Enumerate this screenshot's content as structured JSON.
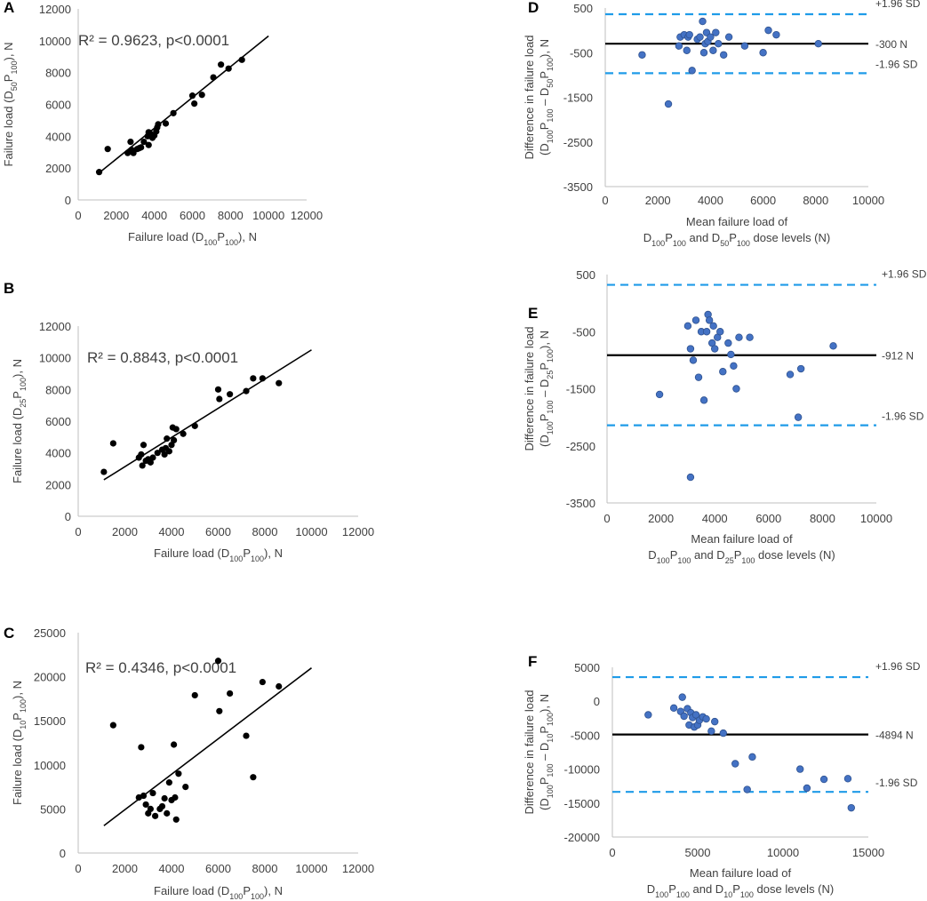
{
  "panels": [
    {
      "id": "A",
      "kind": "scatter",
      "annotation": "R² = 0.9623, p<0.0001",
      "xlabel": {
        "pre": "Failure load (D",
        "s1": "100",
        "mid": "P",
        "s2": "100",
        "post": "), N"
      },
      "ylabel": {
        "pre": "Failure load (D",
        "s1": "50",
        "mid": "P",
        "s2": "100",
        "post": "), N"
      },
      "xlim": [
        0,
        12000
      ],
      "ylim": [
        0,
        12000
      ],
      "xticks": [
        0,
        2000,
        4000,
        6000,
        8000,
        10000,
        12000
      ],
      "yticks": [
        0,
        2000,
        4000,
        6000,
        8000,
        10000,
        12000
      ],
      "trend": [
        [
          1100,
          1700
        ],
        [
          10000,
          10300
        ]
      ],
      "points": [
        [
          1100,
          1750
        ],
        [
          1550,
          3200
        ],
        [
          2600,
          2950
        ],
        [
          2750,
          3650
        ],
        [
          2800,
          3150
        ],
        [
          2900,
          2950
        ],
        [
          3100,
          3200
        ],
        [
          3200,
          3250
        ],
        [
          3300,
          3300
        ],
        [
          3450,
          3650
        ],
        [
          3650,
          4000
        ],
        [
          3700,
          3450
        ],
        [
          3700,
          4250
        ],
        [
          3800,
          4150
        ],
        [
          3900,
          3900
        ],
        [
          4000,
          4050
        ],
        [
          4100,
          4300
        ],
        [
          4150,
          4550
        ],
        [
          4200,
          4750
        ],
        [
          4600,
          4800
        ],
        [
          5000,
          5450
        ],
        [
          6000,
          6550
        ],
        [
          6100,
          6050
        ],
        [
          6500,
          6600
        ],
        [
          7100,
          7700
        ],
        [
          7500,
          8500
        ],
        [
          7900,
          8250
        ],
        [
          8600,
          8800
        ]
      ]
    },
    {
      "id": "B",
      "kind": "scatter",
      "annotation": "R² = 0.8843, p<0.0001",
      "xlabel": {
        "pre": "Failure load (D",
        "s1": "100",
        "mid": "P",
        "s2": "100",
        "post": "), N"
      },
      "ylabel": {
        "pre": "Failure load (D",
        "s1": "25",
        "mid": "P",
        "s2": "100",
        "post": "), N"
      },
      "xlim": [
        0,
        12000
      ],
      "ylim": [
        0,
        12000
      ],
      "xticks": [
        0,
        2000,
        4000,
        6000,
        8000,
        10000,
        12000
      ],
      "yticks": [
        0,
        2000,
        4000,
        6000,
        8000,
        10000,
        12000
      ],
      "trend": [
        [
          1100,
          2300
        ],
        [
          10000,
          10500
        ]
      ],
      "points": [
        [
          1100,
          2800
        ],
        [
          1500,
          4600
        ],
        [
          2600,
          3700
        ],
        [
          2700,
          3900
        ],
        [
          2750,
          3200
        ],
        [
          2800,
          4500
        ],
        [
          2900,
          3500
        ],
        [
          3000,
          3600
        ],
        [
          3100,
          3400
        ],
        [
          3200,
          3700
        ],
        [
          3400,
          4000
        ],
        [
          3600,
          4200
        ],
        [
          3700,
          3900
        ],
        [
          3750,
          4300
        ],
        [
          3800,
          4900
        ],
        [
          3900,
          4100
        ],
        [
          4000,
          4500
        ],
        [
          4050,
          5600
        ],
        [
          4100,
          4800
        ],
        [
          4200,
          5500
        ],
        [
          4500,
          5200
        ],
        [
          5000,
          5700
        ],
        [
          6000,
          8000
        ],
        [
          6050,
          7400
        ],
        [
          6500,
          7700
        ],
        [
          7200,
          7900
        ],
        [
          7500,
          8700
        ],
        [
          7900,
          8700
        ],
        [
          8600,
          8400
        ]
      ]
    },
    {
      "id": "C",
      "kind": "scatter",
      "annotation": "R² = 0.4346, p<0.0001",
      "xlabel": {
        "pre": "Failure load (D",
        "s1": "100",
        "mid": "P",
        "s2": "100",
        "post": "), N"
      },
      "ylabel": {
        "pre": "Failure load (D",
        "s1": "10",
        "mid": "P",
        "s2": "100",
        "post": "), N"
      },
      "xlim": [
        0,
        12000
      ],
      "ylim": [
        0,
        25000
      ],
      "xticks": [
        0,
        2000,
        4000,
        6000,
        8000,
        10000,
        12000
      ],
      "yticks": [
        0,
        5000,
        10000,
        15000,
        20000,
        25000
      ],
      "trend": [
        [
          1100,
          3100
        ],
        [
          10000,
          21000
        ]
      ],
      "points": [
        [
          1500,
          14500
        ],
        [
          2600,
          6300
        ],
        [
          2700,
          12000
        ],
        [
          2800,
          6500
        ],
        [
          2900,
          5500
        ],
        [
          3000,
          4500
        ],
        [
          3100,
          5000
        ],
        [
          3200,
          6800
        ],
        [
          3300,
          4200
        ],
        [
          3500,
          5000
        ],
        [
          3600,
          5300
        ],
        [
          3700,
          6200
        ],
        [
          3800,
          4500
        ],
        [
          3900,
          8000
        ],
        [
          4000,
          6000
        ],
        [
          4100,
          12300
        ],
        [
          4150,
          6300
        ],
        [
          4200,
          3800
        ],
        [
          4300,
          9000
        ],
        [
          4600,
          7500
        ],
        [
          5000,
          17900
        ],
        [
          6000,
          21800
        ],
        [
          6050,
          16100
        ],
        [
          6500,
          18100
        ],
        [
          7200,
          13300
        ],
        [
          7500,
          8600
        ],
        [
          7900,
          19400
        ],
        [
          8600,
          18900
        ]
      ]
    },
    {
      "id": "D",
      "kind": "bland-altman",
      "xlabel1": "Mean failure load of",
      "xlabel2": {
        "a": "D",
        "a1": "100",
        "b": "P",
        "b1": "100",
        "c": " and D",
        "c1": "50",
        "d": "P",
        "d1": "100",
        "e": " dose levels (N)"
      },
      "ylabel1": "Difference in failure load",
      "ylabel2": {
        "a": "(D",
        "a1": "100",
        "b": "P",
        "b1": "100",
        "c": " – D",
        "c1": "50",
        "d": "P",
        "d1": "100",
        "e": "), N"
      },
      "xlim": [
        0,
        10000
      ],
      "ylim": [
        -3500,
        500
      ],
      "xticks": [
        0,
        2000,
        4000,
        6000,
        8000,
        10000
      ],
      "yticks": [
        500,
        -500,
        -1500,
        -2500,
        -3500
      ],
      "mean_value": -300,
      "upper_value": 360,
      "lower_value": -960,
      "mean_label": "-300 N",
      "upper_label": "+1.96 SD",
      "lower_label": "-1.96 SD",
      "points": [
        [
          1400,
          -550
        ],
        [
          2400,
          -1650
        ],
        [
          2800,
          -350
        ],
        [
          2850,
          -150
        ],
        [
          3000,
          -100
        ],
        [
          3100,
          -450
        ],
        [
          3150,
          -150
        ],
        [
          3200,
          -100
        ],
        [
          3300,
          -900
        ],
        [
          3500,
          -200
        ],
        [
          3600,
          -150
        ],
        [
          3700,
          200
        ],
        [
          3750,
          -500
        ],
        [
          3800,
          -300
        ],
        [
          3850,
          -50
        ],
        [
          3900,
          -250
        ],
        [
          4000,
          -150
        ],
        [
          4100,
          -450
        ],
        [
          4200,
          -50
        ],
        [
          4300,
          -300
        ],
        [
          4500,
          -550
        ],
        [
          4700,
          -150
        ],
        [
          5300,
          -350
        ],
        [
          6000,
          -500
        ],
        [
          6200,
          0
        ],
        [
          6500,
          -100
        ],
        [
          8100,
          -300
        ]
      ]
    },
    {
      "id": "E",
      "kind": "bland-altman",
      "xlabel1": "Mean failure load of",
      "xlabel2": {
        "a": "D",
        "a1": "100",
        "b": "P",
        "b1": "100",
        "c": " and D",
        "c1": "25",
        "d": "P",
        "d1": "100",
        "e": " dose levels (N)"
      },
      "ylabel1": "Difference in failure load",
      "ylabel2": {
        "a": "(D",
        "a1": "100",
        "b": "P",
        "b1": "100",
        "c": " – D",
        "c1": "25",
        "d": "P",
        "d1": "100",
        "e": "), N"
      },
      "xlim": [
        0,
        10000
      ],
      "ylim": [
        -3500,
        500
      ],
      "xticks": [
        0,
        2000,
        4000,
        6000,
        8000,
        10000
      ],
      "yticks": [
        500,
        -500,
        -1500,
        -2500,
        -3500
      ],
      "mean_value": -912,
      "upper_value": 320,
      "lower_value": -2140,
      "mean_label": "-912 N",
      "upper_label": "+1.96 SD",
      "lower_label": "-1.96 SD",
      "points": [
        [
          1950,
          -1600
        ],
        [
          3000,
          -400
        ],
        [
          3100,
          -3050
        ],
        [
          3100,
          -800
        ],
        [
          3200,
          -1000
        ],
        [
          3300,
          -300
        ],
        [
          3400,
          -1300
        ],
        [
          3500,
          -500
        ],
        [
          3600,
          -1700
        ],
        [
          3700,
          -500
        ],
        [
          3750,
          -200
        ],
        [
          3800,
          -300
        ],
        [
          3900,
          -700
        ],
        [
          3950,
          -400
        ],
        [
          4000,
          -800
        ],
        [
          4100,
          -600
        ],
        [
          4200,
          -500
        ],
        [
          4300,
          -1200
        ],
        [
          4500,
          -700
        ],
        [
          4600,
          -900
        ],
        [
          4700,
          -1100
        ],
        [
          4800,
          -1500
        ],
        [
          4900,
          -600
        ],
        [
          5300,
          -600
        ],
        [
          6800,
          -1250
        ],
        [
          7100,
          -2000
        ],
        [
          7200,
          -1150
        ],
        [
          8400,
          -750
        ]
      ]
    },
    {
      "id": "F",
      "kind": "bland-altman",
      "xlabel1": "Mean failure load of",
      "xlabel2": {
        "a": "D",
        "a1": "100",
        "b": "P",
        "b1": "100",
        "c": " and D",
        "c1": "10",
        "d": "P",
        "d1": "100",
        "e": " dose levels (N)"
      },
      "ylabel1": "Difference in failure load",
      "ylabel2": {
        "a": "(D",
        "a1": "100",
        "b": "P",
        "b1": "100",
        "c": " – D",
        "c1": "10",
        "d": "P",
        "d1": "100",
        "e": "), N"
      },
      "xlim": [
        0,
        15000
      ],
      "ylim": [
        -20000,
        5000
      ],
      "xticks": [
        0,
        5000,
        10000,
        15000
      ],
      "yticks": [
        5000,
        0,
        -5000,
        -10000,
        -15000,
        -20000
      ],
      "mean_value": -4894,
      "upper_value": 3550,
      "lower_value": -13350,
      "mean_label": "-4894 N",
      "upper_label": "+1.96 SD",
      "lower_label": "-1.96 SD",
      "points": [
        [
          2100,
          -2000
        ],
        [
          3600,
          -1000
        ],
        [
          4000,
          -1500
        ],
        [
          4100,
          600
        ],
        [
          4200,
          -2200
        ],
        [
          4400,
          -1100
        ],
        [
          4500,
          -3500
        ],
        [
          4600,
          -1700
        ],
        [
          4700,
          -2400
        ],
        [
          4800,
          -3800
        ],
        [
          4900,
          -2000
        ],
        [
          5000,
          -3500
        ],
        [
          5100,
          -2800
        ],
        [
          5300,
          -2300
        ],
        [
          5500,
          -2600
        ],
        [
          5800,
          -4400
        ],
        [
          6000,
          -3000
        ],
        [
          6500,
          -4700
        ],
        [
          7200,
          -9200
        ],
        [
          7900,
          -13000
        ],
        [
          8200,
          -8200
        ],
        [
          11000,
          -10000
        ],
        [
          11400,
          -12800
        ],
        [
          12400,
          -11500
        ],
        [
          13800,
          -11400
        ],
        [
          14000,
          -15700
        ]
      ]
    }
  ],
  "chart_data": [
    {
      "type": "scatter",
      "panel": "A",
      "title": "",
      "xlabel": "Failure load (D100P100), N",
      "ylabel": "Failure load (D50P100), N",
      "xlim": [
        0,
        12000
      ],
      "ylim": [
        0,
        12000
      ],
      "annotation": "R² = 0.9623, p<0.0001",
      "trendline": [
        [
          1100,
          1700
        ],
        [
          10000,
          10300
        ]
      ]
    },
    {
      "type": "scatter",
      "panel": "B",
      "title": "",
      "xlabel": "Failure load (D100P100), N",
      "ylabel": "Failure load (D25P100), N",
      "xlim": [
        0,
        12000
      ],
      "ylim": [
        0,
        12000
      ],
      "annotation": "R² = 0.8843, p<0.0001",
      "trendline": [
        [
          1100,
          2300
        ],
        [
          10000,
          10500
        ]
      ]
    },
    {
      "type": "scatter",
      "panel": "C",
      "title": "",
      "xlabel": "Failure load (D100P100), N",
      "ylabel": "Failure load (D10P100), N",
      "xlim": [
        0,
        12000
      ],
      "ylim": [
        0,
        25000
      ],
      "annotation": "R² = 0.4346, p<0.0001",
      "trendline": [
        [
          1100,
          3100
        ],
        [
          10000,
          21000
        ]
      ]
    },
    {
      "type": "scatter",
      "panel": "D",
      "title": "",
      "xlabel": "Mean failure load of D100P100 and D50P100 dose levels (N)",
      "ylabel": "Difference in failure load (D100P100 – D50P100), N",
      "xlim": [
        0,
        10000
      ],
      "ylim": [
        -3500,
        500
      ],
      "mean_bias": -300,
      "upper_loa": 360,
      "lower_loa": -960
    },
    {
      "type": "scatter",
      "panel": "E",
      "title": "",
      "xlabel": "Mean failure load of D100P100 and D25P100 dose levels (N)",
      "ylabel": "Difference in failure load (D100P100 – D25P100), N",
      "xlim": [
        0,
        10000
      ],
      "ylim": [
        -3500,
        500
      ],
      "mean_bias": -912,
      "upper_loa": 320,
      "lower_loa": -2140
    },
    {
      "type": "scatter",
      "panel": "F",
      "title": "",
      "xlabel": "Mean failure load of D100P100 and D10P100 dose levels (N)",
      "ylabel": "Difference in failure load (D100P100 – D10P100), N",
      "xlim": [
        0,
        15000
      ],
      "ylim": [
        -20000,
        5000
      ],
      "mean_bias": -4894,
      "upper_loa": 3550,
      "lower_loa": -13350
    }
  ],
  "colors": {
    "scatter_dot": "#000000",
    "ba_dot": "#4472c4",
    "ba_dot_edge": "#2f528f",
    "loa_line": "#1f9be8",
    "mean_line": "#000000",
    "axis": "#bfbfbf",
    "text": "#404040"
  }
}
